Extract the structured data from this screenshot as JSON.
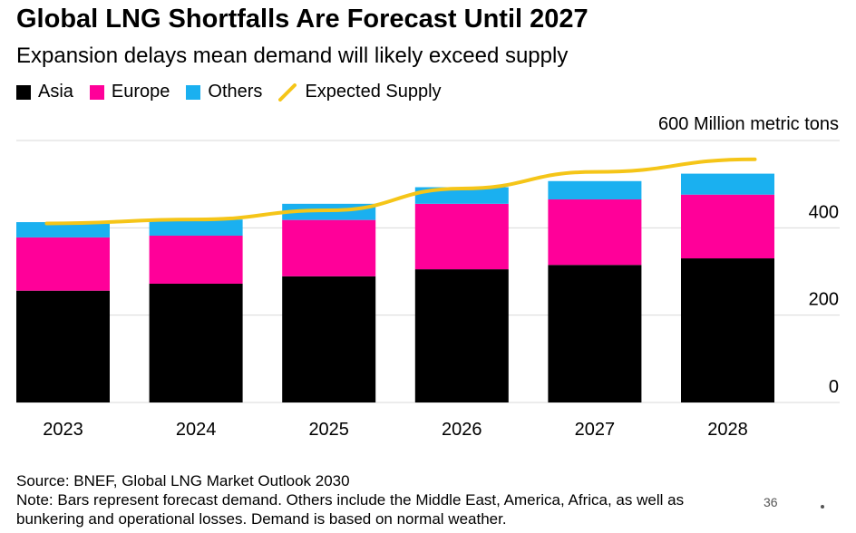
{
  "title": "Global LNG Shortfalls Are Forecast Until 2027",
  "subtitle": "Expansion delays mean demand will likely exceed supply",
  "legend": {
    "asia": "Asia",
    "europe": "Europe",
    "others": "Others",
    "supply": "Expected Supply"
  },
  "colors": {
    "asia": "#000000",
    "europe": "#ff0099",
    "others": "#1ab0f0",
    "supply": "#f5c518",
    "grid": "#d9d9d9"
  },
  "chart_data": {
    "type": "bar",
    "stacked": true,
    "unit_label": "600 Million metric tons",
    "categories": [
      "2023",
      "2024",
      "2025",
      "2026",
      "2027",
      "2028"
    ],
    "series": [
      {
        "name": "Asia",
        "values": [
          256,
          272,
          289,
          305,
          315,
          330
        ]
      },
      {
        "name": "Europe",
        "values": [
          122,
          110,
          129,
          150,
          150,
          146
        ]
      },
      {
        "name": "Others",
        "values": [
          35,
          37,
          37,
          38,
          42,
          48
        ]
      }
    ],
    "line": {
      "name": "Expected Supply",
      "values": [
        410,
        419,
        440,
        490,
        528,
        557
      ]
    },
    "yticks": [
      0,
      200,
      400,
      600
    ],
    "ylim": [
      0,
      600
    ]
  },
  "footer": {
    "source": "Source: BNEF, Global LNG Market Outlook 2030",
    "note1": "Note: Bars represent forecast demand. Others include the Middle East, America, Africa, as well as",
    "note2": "bunkering and operational losses. Demand is based on normal weather."
  },
  "watermark": "36"
}
